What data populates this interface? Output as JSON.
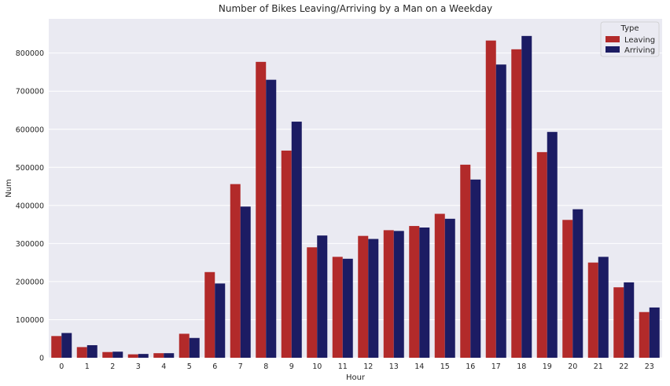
{
  "chart_data": {
    "type": "bar",
    "title": "Number of Bikes Leaving/Arriving by a Man on a Weekday",
    "xlabel": "Hour",
    "ylabel": "Num",
    "categories": [
      "0",
      "1",
      "2",
      "3",
      "4",
      "5",
      "6",
      "7",
      "8",
      "9",
      "10",
      "11",
      "12",
      "13",
      "14",
      "15",
      "16",
      "17",
      "18",
      "19",
      "20",
      "21",
      "22",
      "23"
    ],
    "series": [
      {
        "name": "Leaving",
        "color": "#b22a2a",
        "values": [
          57000,
          28000,
          15000,
          9000,
          12000,
          63000,
          225000,
          456000,
          777000,
          544000,
          290000,
          265000,
          320000,
          335000,
          346000,
          378000,
          507000,
          833000,
          810000,
          540000,
          362000,
          250000,
          185000,
          120000
        ]
      },
      {
        "name": "Arriving",
        "color": "#1c1c63",
        "values": [
          65000,
          33000,
          16000,
          10000,
          12000,
          52000,
          195000,
          397000,
          730000,
          620000,
          321000,
          260000,
          312000,
          333000,
          342000,
          365000,
          468000,
          770000,
          845000,
          593000,
          390000,
          265000,
          198000,
          132000
        ]
      }
    ],
    "ylim": [
      0,
      890000
    ],
    "yticks": [
      "0",
      "100000",
      "200000",
      "300000",
      "400000",
      "500000",
      "600000",
      "700000",
      "800000"
    ],
    "legend": {
      "title": "Type",
      "position": "top-right"
    },
    "grid": true,
    "background": "#eaeaf2",
    "grid_color": "#ffffff"
  }
}
